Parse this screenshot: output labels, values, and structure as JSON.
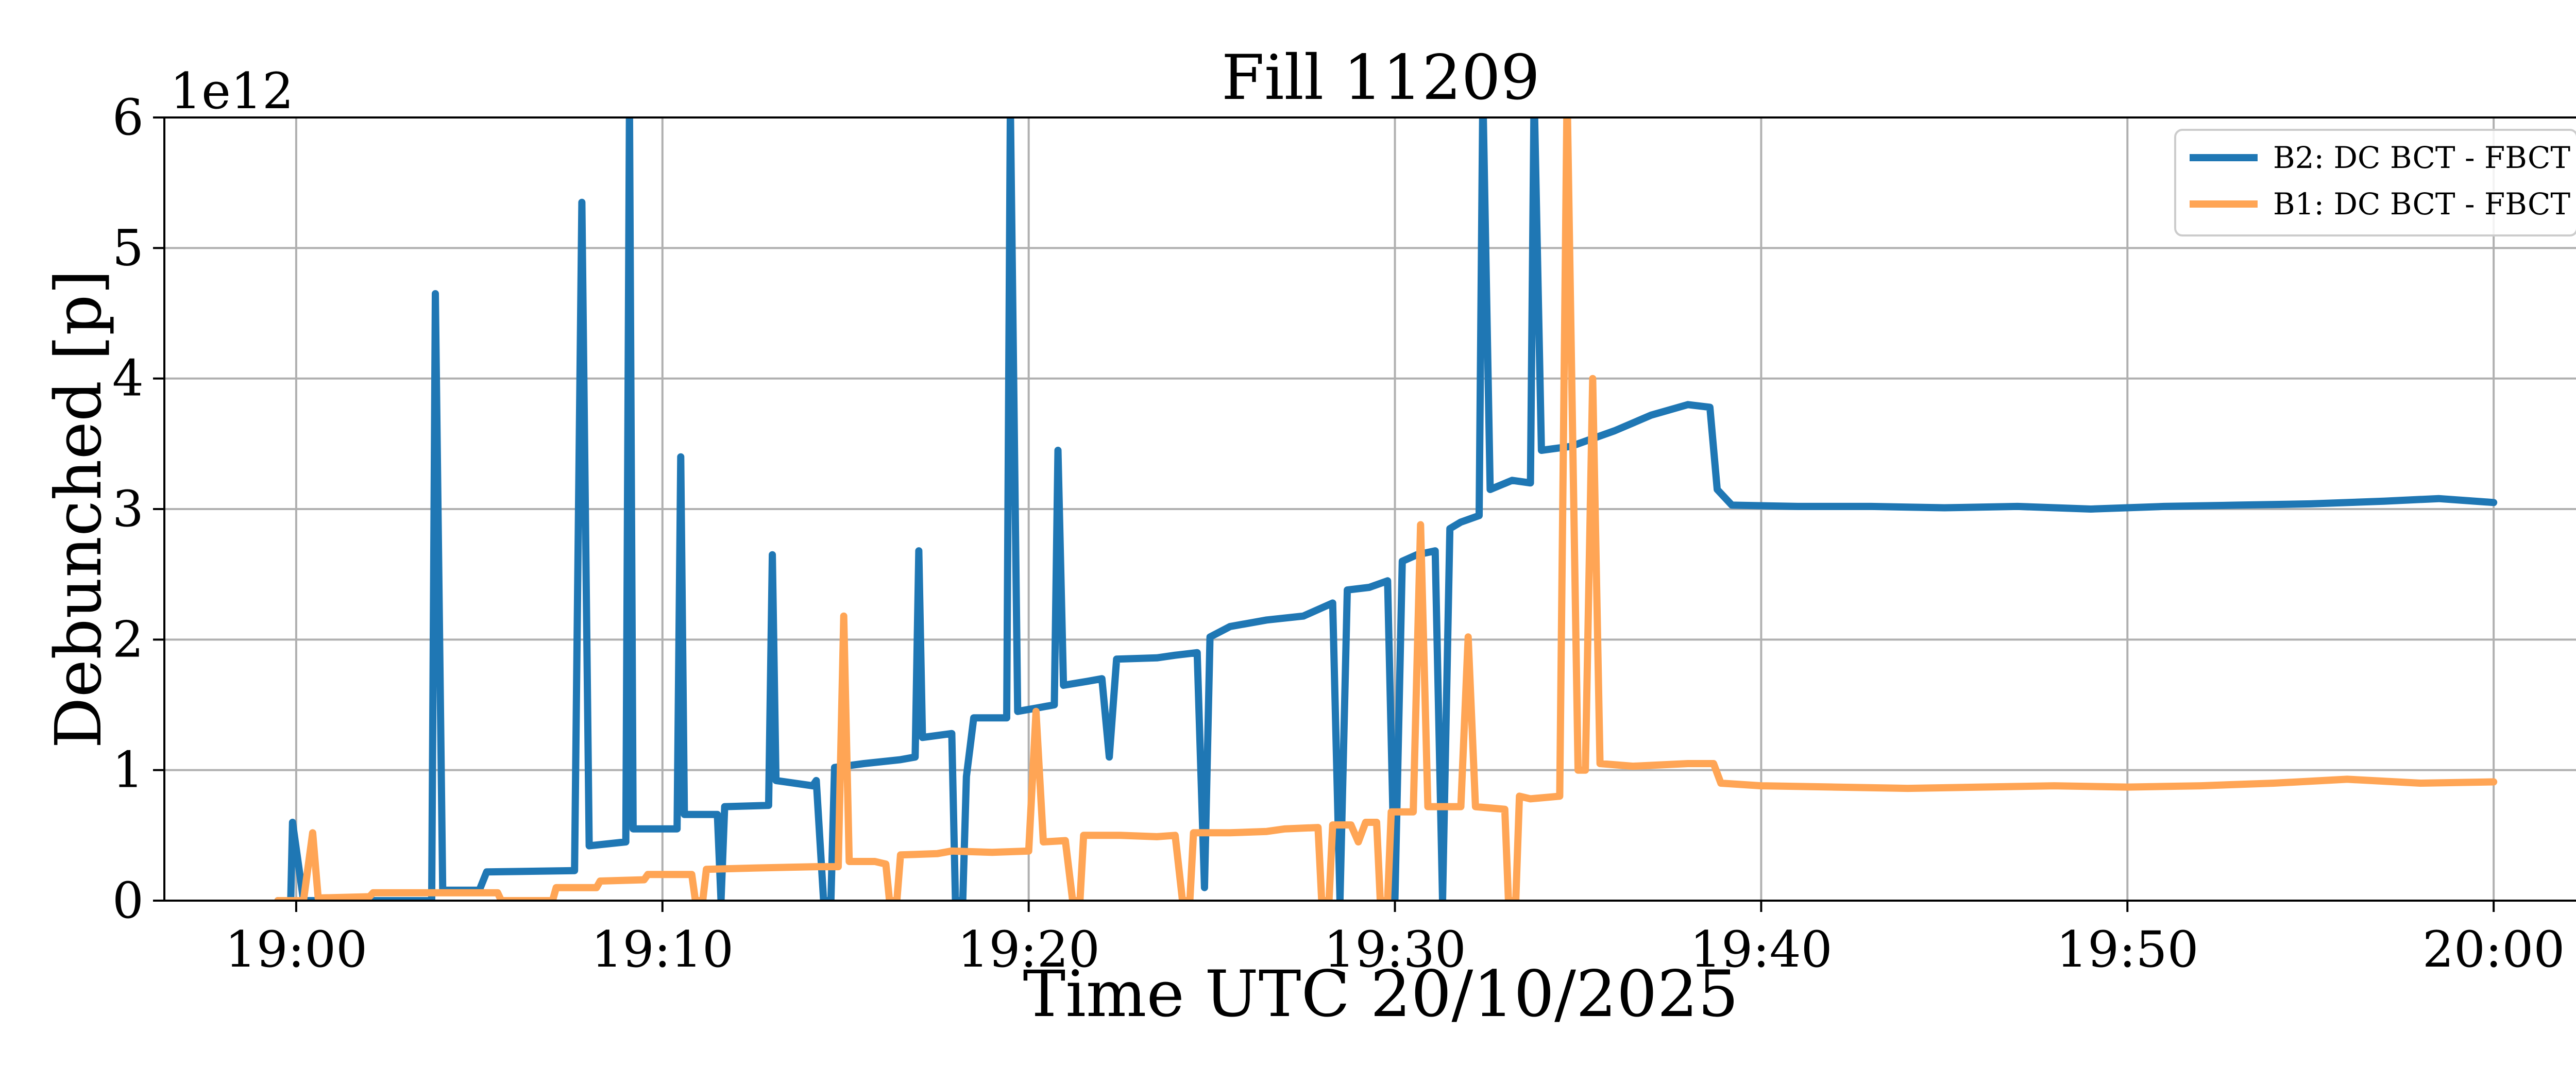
{
  "chart_data": {
    "type": "line",
    "title": "Fill 11209",
    "xlabel": "Time UTC 20/10/2025",
    "ylabel": "Debunched [p]",
    "y_offset_label": "1e12",
    "x_unit": "minutes after 19:00 UTC",
    "xlim": [
      -3.6,
      62.6
    ],
    "ylim": [
      0,
      6
    ],
    "x_ticks": [
      0,
      10,
      20,
      30,
      40,
      50,
      60
    ],
    "x_tick_labels": [
      "19:00",
      "19:10",
      "19:20",
      "19:30",
      "19:40",
      "19:50",
      "20:00"
    ],
    "y_ticks": [
      0,
      1,
      2,
      3,
      4,
      5,
      6
    ],
    "y_tick_labels": [
      "0",
      "1",
      "2",
      "3",
      "4",
      "5",
      "6"
    ],
    "grid": true,
    "legend_position": "top-right",
    "series": [
      {
        "name": "B2: DC BCT - FBCT",
        "color": "#1f77b4",
        "points": [
          [
            -0.5,
            0.0
          ],
          [
            -0.15,
            0.0
          ],
          [
            -0.1,
            0.6
          ],
          [
            0.2,
            0.0
          ],
          [
            3.7,
            0.0
          ],
          [
            3.8,
            4.65
          ],
          [
            4.0,
            0.08
          ],
          [
            5.0,
            0.08
          ],
          [
            5.2,
            0.22
          ],
          [
            7.6,
            0.23
          ],
          [
            7.8,
            5.35
          ],
          [
            8.0,
            0.42
          ],
          [
            9.0,
            0.45
          ],
          [
            9.1,
            6.1
          ],
          [
            9.2,
            0.55
          ],
          [
            10.4,
            0.55
          ],
          [
            10.5,
            3.4
          ],
          [
            10.6,
            0.66
          ],
          [
            11.5,
            0.66
          ],
          [
            11.6,
            0.0
          ],
          [
            11.7,
            0.72
          ],
          [
            12.9,
            0.73
          ],
          [
            13.0,
            2.65
          ],
          [
            13.1,
            0.92
          ],
          [
            14.1,
            0.88
          ],
          [
            14.2,
            0.92
          ],
          [
            14.4,
            0.0
          ],
          [
            14.6,
            0.0
          ],
          [
            14.7,
            1.02
          ],
          [
            15.5,
            1.05
          ],
          [
            16.5,
            1.08
          ],
          [
            16.9,
            1.1
          ],
          [
            17.0,
            2.68
          ],
          [
            17.1,
            1.25
          ],
          [
            17.9,
            1.28
          ],
          [
            18.0,
            0.0
          ],
          [
            18.2,
            0.0
          ],
          [
            18.3,
            0.95
          ],
          [
            18.5,
            1.4
          ],
          [
            19.4,
            1.4
          ],
          [
            19.5,
            6.1
          ],
          [
            19.7,
            1.45
          ],
          [
            20.3,
            1.48
          ],
          [
            20.7,
            1.5
          ],
          [
            20.8,
            3.45
          ],
          [
            20.95,
            1.65
          ],
          [
            21.6,
            1.68
          ],
          [
            22.0,
            1.7
          ],
          [
            22.2,
            1.1
          ],
          [
            22.4,
            1.85
          ],
          [
            23.5,
            1.86
          ],
          [
            24.0,
            1.88
          ],
          [
            24.6,
            1.9
          ],
          [
            24.8,
            0.1
          ],
          [
            24.95,
            2.02
          ],
          [
            25.5,
            2.1
          ],
          [
            26.5,
            2.15
          ],
          [
            27.5,
            2.18
          ],
          [
            28.3,
            2.28
          ],
          [
            28.5,
            0.0
          ],
          [
            28.7,
            2.38
          ],
          [
            29.3,
            2.4
          ],
          [
            29.8,
            2.45
          ],
          [
            30.0,
            0.0
          ],
          [
            30.2,
            2.6
          ],
          [
            30.6,
            2.65
          ],
          [
            31.1,
            2.68
          ],
          [
            31.3,
            0.0
          ],
          [
            31.5,
            2.85
          ],
          [
            31.8,
            2.9
          ],
          [
            32.3,
            2.95
          ],
          [
            32.4,
            6.2
          ],
          [
            32.6,
            3.15
          ],
          [
            33.2,
            3.22
          ],
          [
            33.7,
            3.2
          ],
          [
            33.8,
            6.2
          ],
          [
            34.0,
            3.45
          ],
          [
            34.8,
            3.48
          ],
          [
            36.0,
            3.6
          ],
          [
            37.0,
            3.72
          ],
          [
            38.0,
            3.8
          ],
          [
            38.6,
            3.78
          ],
          [
            38.8,
            3.15
          ],
          [
            39.2,
            3.03
          ],
          [
            41.0,
            3.02
          ],
          [
            43.0,
            3.02
          ],
          [
            45.0,
            3.01
          ],
          [
            47.0,
            3.02
          ],
          [
            49.0,
            3.0
          ],
          [
            51.0,
            3.02
          ],
          [
            53.0,
            3.03
          ],
          [
            55.0,
            3.04
          ],
          [
            57.0,
            3.06
          ],
          [
            58.5,
            3.08
          ],
          [
            60.0,
            3.05
          ]
        ]
      },
      {
        "name": "B1: DC BCT - FBCT",
        "color": "#ffa555",
        "points": [
          [
            -0.5,
            0.0
          ],
          [
            0.2,
            0.0
          ],
          [
            0.45,
            0.52
          ],
          [
            0.6,
            0.02
          ],
          [
            2.0,
            0.03
          ],
          [
            2.1,
            0.06
          ],
          [
            5.5,
            0.06
          ],
          [
            5.6,
            0.0
          ],
          [
            7.0,
            0.0
          ],
          [
            7.1,
            0.1
          ],
          [
            8.2,
            0.1
          ],
          [
            8.3,
            0.15
          ],
          [
            9.5,
            0.16
          ],
          [
            9.6,
            0.2
          ],
          [
            10.8,
            0.2
          ],
          [
            10.9,
            0.0
          ],
          [
            11.1,
            0.0
          ],
          [
            11.2,
            0.24
          ],
          [
            12.5,
            0.25
          ],
          [
            14.2,
            0.26
          ],
          [
            14.8,
            0.26
          ],
          [
            14.95,
            2.18
          ],
          [
            15.1,
            0.3
          ],
          [
            15.8,
            0.3
          ],
          [
            16.1,
            0.28
          ],
          [
            16.2,
            0.0
          ],
          [
            16.4,
            0.0
          ],
          [
            16.5,
            0.35
          ],
          [
            17.5,
            0.36
          ],
          [
            17.9,
            0.38
          ],
          [
            19.0,
            0.37
          ],
          [
            20.0,
            0.38
          ],
          [
            20.2,
            1.45
          ],
          [
            20.4,
            0.45
          ],
          [
            21.0,
            0.46
          ],
          [
            21.2,
            0.0
          ],
          [
            21.4,
            0.0
          ],
          [
            21.5,
            0.5
          ],
          [
            22.5,
            0.5
          ],
          [
            23.5,
            0.49
          ],
          [
            24.0,
            0.5
          ],
          [
            24.2,
            0.0
          ],
          [
            24.4,
            0.0
          ],
          [
            24.5,
            0.52
          ],
          [
            25.5,
            0.52
          ],
          [
            26.5,
            0.53
          ],
          [
            27.0,
            0.55
          ],
          [
            27.9,
            0.56
          ],
          [
            28.0,
            0.0
          ],
          [
            28.2,
            0.0
          ],
          [
            28.3,
            0.58
          ],
          [
            28.8,
            0.58
          ],
          [
            29.0,
            0.45
          ],
          [
            29.2,
            0.6
          ],
          [
            29.5,
            0.6
          ],
          [
            29.6,
            0.0
          ],
          [
            29.8,
            0.0
          ],
          [
            29.9,
            0.68
          ],
          [
            30.5,
            0.68
          ],
          [
            30.7,
            2.88
          ],
          [
            30.9,
            0.72
          ],
          [
            31.8,
            0.72
          ],
          [
            32.0,
            2.02
          ],
          [
            32.2,
            0.72
          ],
          [
            33.0,
            0.7
          ],
          [
            33.1,
            0.0
          ],
          [
            33.3,
            0.0
          ],
          [
            33.4,
            0.8
          ],
          [
            33.7,
            0.78
          ],
          [
            34.5,
            0.8
          ],
          [
            34.7,
            6.2
          ],
          [
            35.0,
            1.0
          ],
          [
            35.2,
            1.0
          ],
          [
            35.4,
            4.0
          ],
          [
            35.6,
            1.05
          ],
          [
            36.5,
            1.03
          ],
          [
            38.0,
            1.05
          ],
          [
            38.7,
            1.05
          ],
          [
            38.9,
            0.9
          ],
          [
            40.0,
            0.88
          ],
          [
            42.0,
            0.87
          ],
          [
            44.0,
            0.86
          ],
          [
            46.0,
            0.87
          ],
          [
            48.0,
            0.88
          ],
          [
            50.0,
            0.87
          ],
          [
            52.0,
            0.88
          ],
          [
            54.0,
            0.9
          ],
          [
            56.0,
            0.93
          ],
          [
            58.0,
            0.9
          ],
          [
            60.0,
            0.91
          ]
        ]
      }
    ]
  }
}
